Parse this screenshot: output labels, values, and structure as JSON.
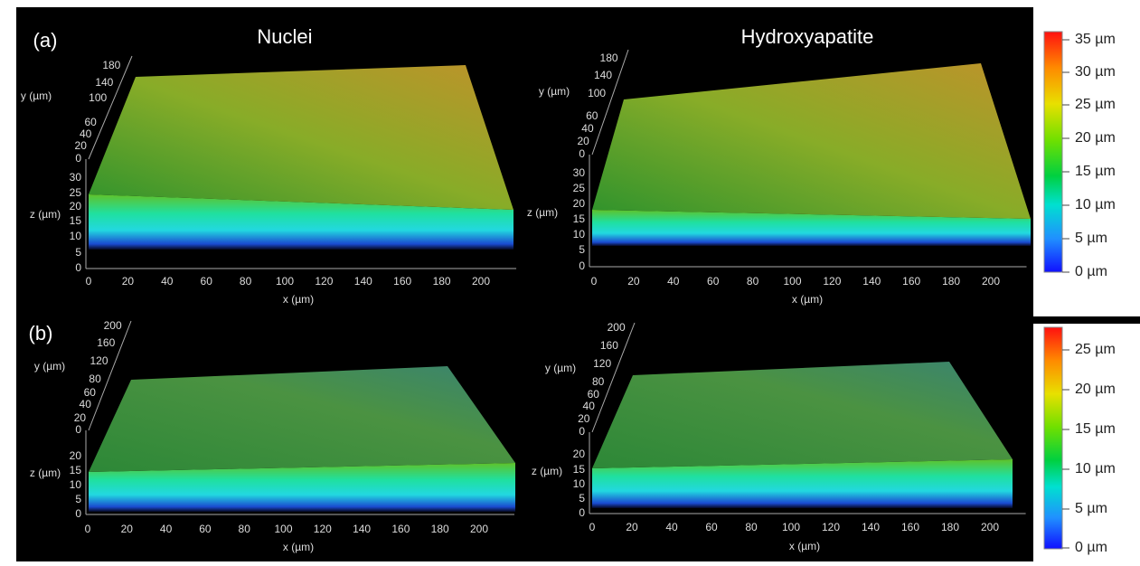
{
  "panels": [
    {
      "label": "(a)",
      "plots": [
        {
          "title": "Nuclei",
          "y_label": "y (µm)",
          "z_label": "z (µm)",
          "x_label": "x (µm)",
          "y_ticks": [
            180,
            140,
            100,
            60,
            40,
            20,
            0
          ],
          "z_ticks": [
            30,
            25,
            20,
            15,
            10,
            5,
            0
          ],
          "x_ticks": [
            0,
            20,
            40,
            60,
            80,
            100,
            120,
            140,
            160,
            180,
            200
          ]
        },
        {
          "title": "Hydroxyapatite",
          "y_label": "y (µm)",
          "z_label": "z (µm)",
          "x_label": "x (µm)",
          "y_ticks": [
            180,
            140,
            100,
            60,
            40,
            20,
            0
          ],
          "z_ticks": [
            30,
            25,
            20,
            15,
            10,
            5,
            0
          ],
          "x_ticks": [
            0,
            20,
            40,
            60,
            80,
            100,
            120,
            140,
            160,
            180,
            200
          ]
        }
      ],
      "colorbar": [
        "35 µm",
        "30 µm",
        "25 µm",
        "20 µm",
        "15 µm",
        "10 µm",
        "5 µm",
        "0 µm"
      ]
    },
    {
      "label": "(b)",
      "plots": [
        {
          "y_label": "y (µm)",
          "z_label": "z (µm)",
          "x_label": "x (µm)",
          "y_ticks": [
            200,
            160,
            120,
            80,
            60,
            40,
            20,
            0
          ],
          "z_ticks": [
            20,
            15,
            10,
            5,
            0
          ],
          "x_ticks": [
            0,
            20,
            40,
            60,
            80,
            100,
            120,
            140,
            160,
            180,
            200
          ]
        },
        {
          "y_label": "y (µm)",
          "z_label": "z (µm)",
          "x_label": "x (µm)",
          "y_ticks": [
            200,
            160,
            120,
            80,
            60,
            40,
            20,
            0
          ],
          "z_ticks": [
            20,
            15,
            10,
            5,
            0
          ],
          "x_ticks": [
            0,
            20,
            40,
            60,
            80,
            100,
            120,
            140,
            160,
            180,
            200
          ]
        }
      ],
      "colorbar": [
        "25 µm",
        "20 µm",
        "15 µm",
        "10 µm",
        "5 µm",
        "0 µm"
      ]
    }
  ]
}
